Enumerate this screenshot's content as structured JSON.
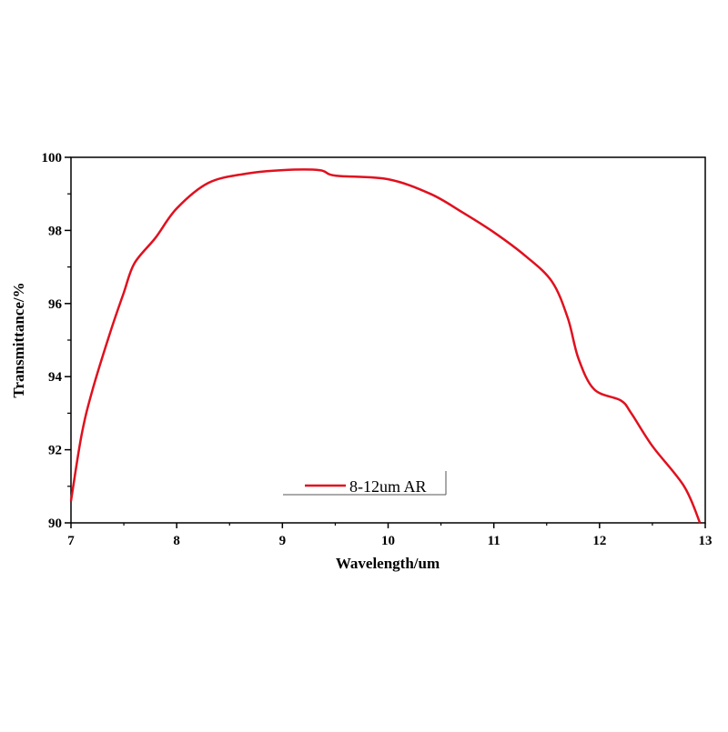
{
  "chart_data": {
    "type": "line",
    "title": "",
    "xlabel": "Wavelength/um",
    "ylabel": "Transmittance/%",
    "xlim": [
      7,
      13
    ],
    "ylim": [
      90,
      100
    ],
    "xticks": [
      "7",
      "8",
      "9",
      "10",
      "11",
      "12",
      "13"
    ],
    "yticks": [
      "90",
      "92",
      "94",
      "96",
      "98",
      "100"
    ],
    "grid": false,
    "legend": "bottom-center",
    "series": [
      {
        "name": "8-12um AR",
        "color": "#e0101e",
        "x": [
          7.0,
          7.1,
          7.2,
          7.37,
          7.5,
          7.6,
          7.8,
          8.0,
          8.3,
          8.65,
          9.0,
          9.35,
          9.5,
          10.0,
          10.4,
          10.7,
          11.0,
          11.3,
          11.55,
          11.7,
          11.8,
          11.95,
          12.2,
          12.3,
          12.5,
          12.8,
          12.95
        ],
        "y": [
          90.6,
          92.4,
          93.6,
          95.2,
          96.3,
          97.1,
          97.8,
          98.6,
          99.3,
          99.55,
          99.65,
          99.65,
          99.5,
          99.4,
          99.0,
          98.5,
          97.95,
          97.3,
          96.6,
          95.6,
          94.5,
          93.65,
          93.35,
          93.0,
          92.1,
          91.0,
          90.0
        ]
      }
    ]
  }
}
